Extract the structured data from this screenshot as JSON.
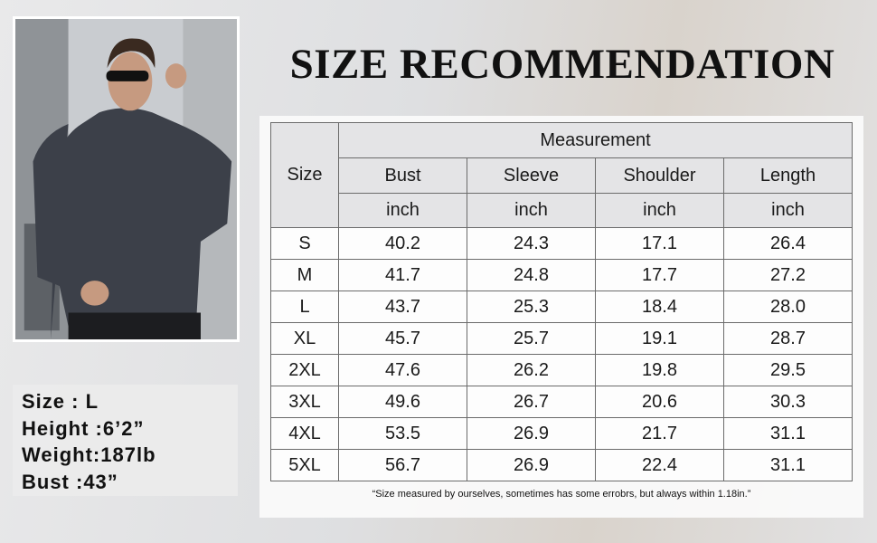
{
  "title": "SIZE RECOMMENDATION",
  "model_info": [
    "Size : L",
    "Height :6’2”",
    "Weight:187lb",
    "Bust :43”"
  ],
  "table": {
    "size_header": "Size",
    "group_header": "Measurement",
    "columns": [
      "Bust",
      "Sleeve",
      "Shoulder",
      "Length"
    ],
    "units": [
      "inch",
      "inch",
      "inch",
      "inch"
    ],
    "rows": [
      [
        "S",
        "40.2",
        "24.3",
        "17.1",
        "26.4"
      ],
      [
        "M",
        "41.7",
        "24.8",
        "17.7",
        "27.2"
      ],
      [
        "L",
        "43.7",
        "25.3",
        "18.4",
        "28.0"
      ],
      [
        "XL",
        "45.7",
        "25.7",
        "19.1",
        "28.7"
      ],
      [
        "2XL",
        "47.6",
        "26.2",
        "19.8",
        "29.5"
      ],
      [
        "3XL",
        "49.6",
        "26.7",
        "20.6",
        "30.3"
      ],
      [
        "4XL",
        "53.5",
        "26.9",
        "21.7",
        "31.1"
      ],
      [
        "5XL",
        "56.7",
        "26.9",
        "22.4",
        "31.1"
      ]
    ]
  },
  "note": "“Size measured by ourselves, sometimes has some errobrs, but always within 1.18in.”"
}
